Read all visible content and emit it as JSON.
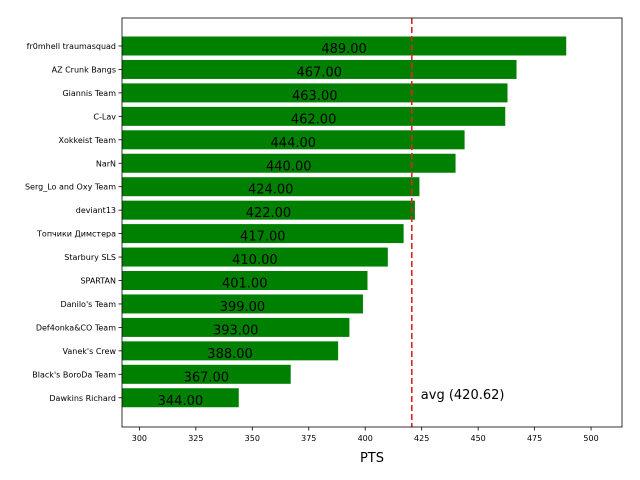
{
  "chart_data": {
    "type": "bar",
    "orientation": "horizontal",
    "categories": [
      "fr0mhell traumasquad",
      "AZ Crunk Bangs",
      "Giannis Team",
      "C-Lav",
      "Xokkeist Team",
      "NarN",
      "Serg_Lo and Oxy Team",
      "deviant13",
      "Топчики Димстера",
      "Starbury SLS",
      "SPARTAN",
      "Danilo's Team",
      "Def4onka&CO Team",
      "Vanek's Crew",
      "Black's BoroDa Team",
      "Dawkins Richard"
    ],
    "values": [
      489,
      467,
      463,
      462,
      444,
      440,
      424,
      422,
      417,
      410,
      401,
      399,
      393,
      388,
      367,
      344
    ],
    "value_labels": [
      "489.00",
      "467.00",
      "463.00",
      "462.00",
      "444.00",
      "440.00",
      "424.00",
      "422.00",
      "417.00",
      "410.00",
      "401.00",
      "399.00",
      "393.00",
      "388.00",
      "367.00",
      "344.00"
    ],
    "xlabel": "PTS",
    "xlim": [
      292.3,
      513.7
    ],
    "xticks": [
      "300",
      "325",
      "350",
      "375",
      "400",
      "425",
      "450",
      "475",
      "500"
    ],
    "bar_color": "#008000",
    "avg_line": {
      "value": 420.62,
      "label": "avg (420.62)",
      "color": "#d62728",
      "style": "dashed"
    },
    "grid": false
  }
}
